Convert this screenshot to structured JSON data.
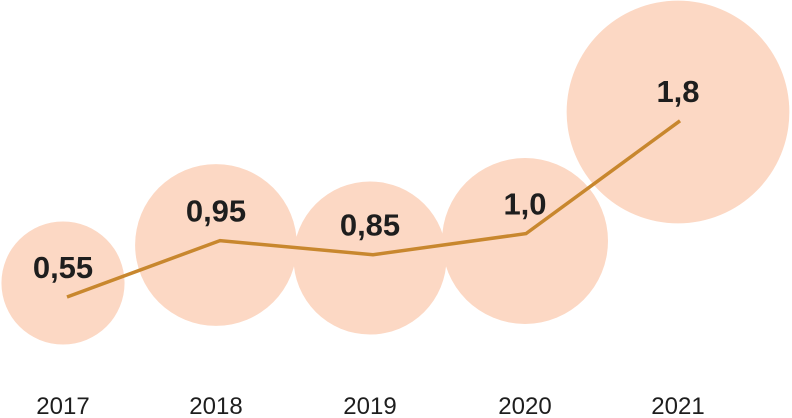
{
  "chart_data": {
    "type": "line",
    "categories": [
      "2017",
      "2018",
      "2019",
      "2020",
      "2021"
    ],
    "values": [
      0.55,
      0.95,
      0.85,
      1.0,
      1.8
    ],
    "data_labels": [
      "0,55",
      "0,95",
      "0,85",
      "1,0",
      "1,8"
    ],
    "bubbles": "circle area proportional to value",
    "grid": false,
    "colors": {
      "line": "#C8872E",
      "bubble": "#FCD8C4",
      "text": "#1E1E1E"
    }
  }
}
